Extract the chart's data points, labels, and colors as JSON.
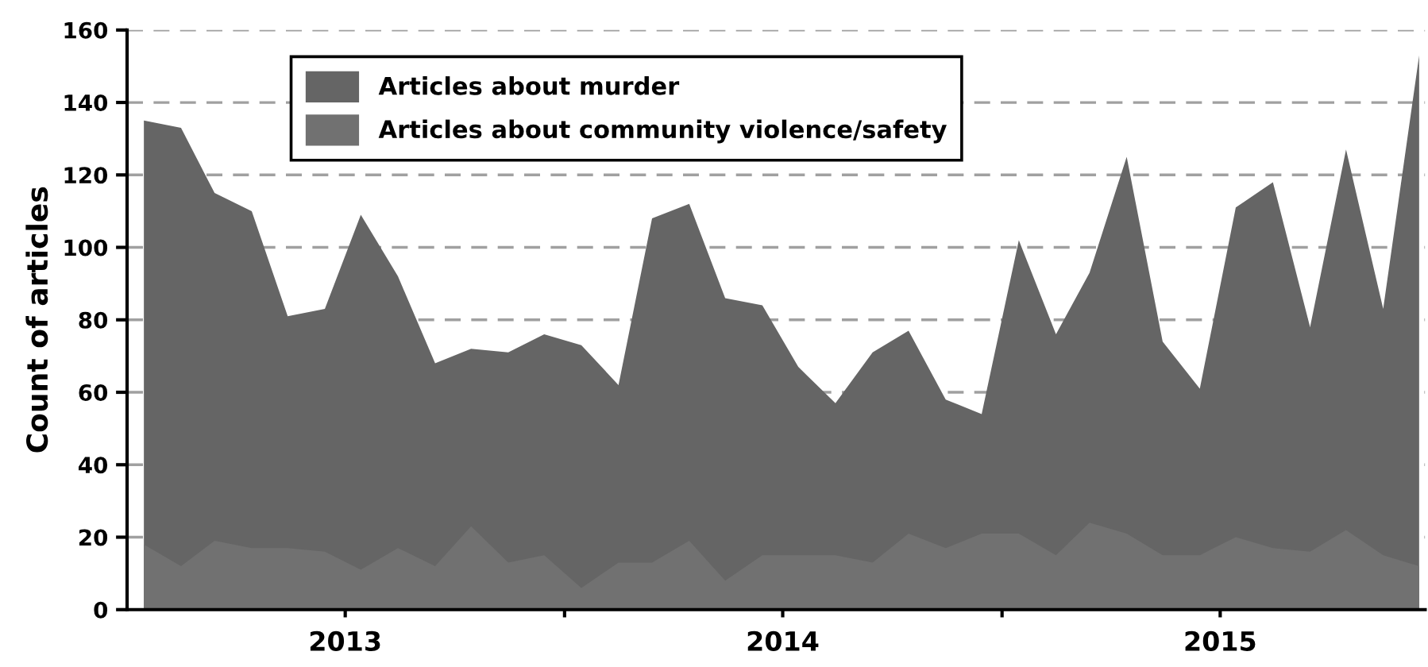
{
  "chart_data": {
    "type": "area",
    "ylabel": "Count of articles",
    "x": [
      "2013-01-15",
      "2013-02-15",
      "2013-03-15",
      "2013-04-15",
      "2013-05-15",
      "2013-06-15",
      "2013-07-15",
      "2013-08-15",
      "2013-09-15",
      "2013-10-15",
      "2013-11-15",
      "2013-12-15",
      "2014-01-15",
      "2014-02-15",
      "2014-03-15",
      "2014-04-15",
      "2014-05-15",
      "2014-06-15",
      "2014-07-15",
      "2014-08-15",
      "2014-09-15",
      "2014-10-15",
      "2014-11-15",
      "2014-12-15",
      "2015-01-15",
      "2015-02-15",
      "2015-03-15",
      "2015-04-15",
      "2015-05-15",
      "2015-06-15",
      "2015-07-15",
      "2015-08-15",
      "2015-09-15",
      "2015-10-15",
      "2015-11-15",
      "2015-12-15"
    ],
    "series": [
      {
        "name": "Articles about murder",
        "color": "#656565",
        "values": [
          135,
          133,
          115,
          110,
          81,
          83,
          109,
          92,
          68,
          72,
          71,
          76,
          73,
          62,
          108,
          112,
          86,
          84,
          67,
          57,
          71,
          77,
          58,
          54,
          102,
          76,
          93,
          125,
          74,
          61,
          111,
          118,
          78,
          127,
          83,
          153
        ]
      },
      {
        "name": "Articles about community violence/safety",
        "color": "#717171",
        "values": [
          18,
          12,
          19,
          17,
          17,
          16,
          11,
          17,
          12,
          23,
          13,
          15,
          6,
          13,
          13,
          19,
          8,
          15,
          15,
          15,
          13,
          21,
          17,
          21,
          21,
          15,
          24,
          21,
          15,
          15,
          20,
          17,
          16,
          22,
          15,
          12
        ]
      }
    ],
    "xlim": [
      "2013-01-01",
      "2015-12-20"
    ],
    "xticks": [
      {
        "value": "2013-07-02",
        "label": "2013"
      },
      {
        "value": "2014-01-01",
        "label": null
      },
      {
        "value": "2014-07-02",
        "label": "2014"
      },
      {
        "value": "2015-01-01",
        "label": null
      },
      {
        "value": "2015-07-02",
        "label": "2015"
      }
    ],
    "ylim": [
      0,
      160
    ],
    "yticks": [
      0,
      20,
      40,
      60,
      80,
      100,
      120,
      140,
      160
    ],
    "grid": "y",
    "legend": "top left"
  }
}
